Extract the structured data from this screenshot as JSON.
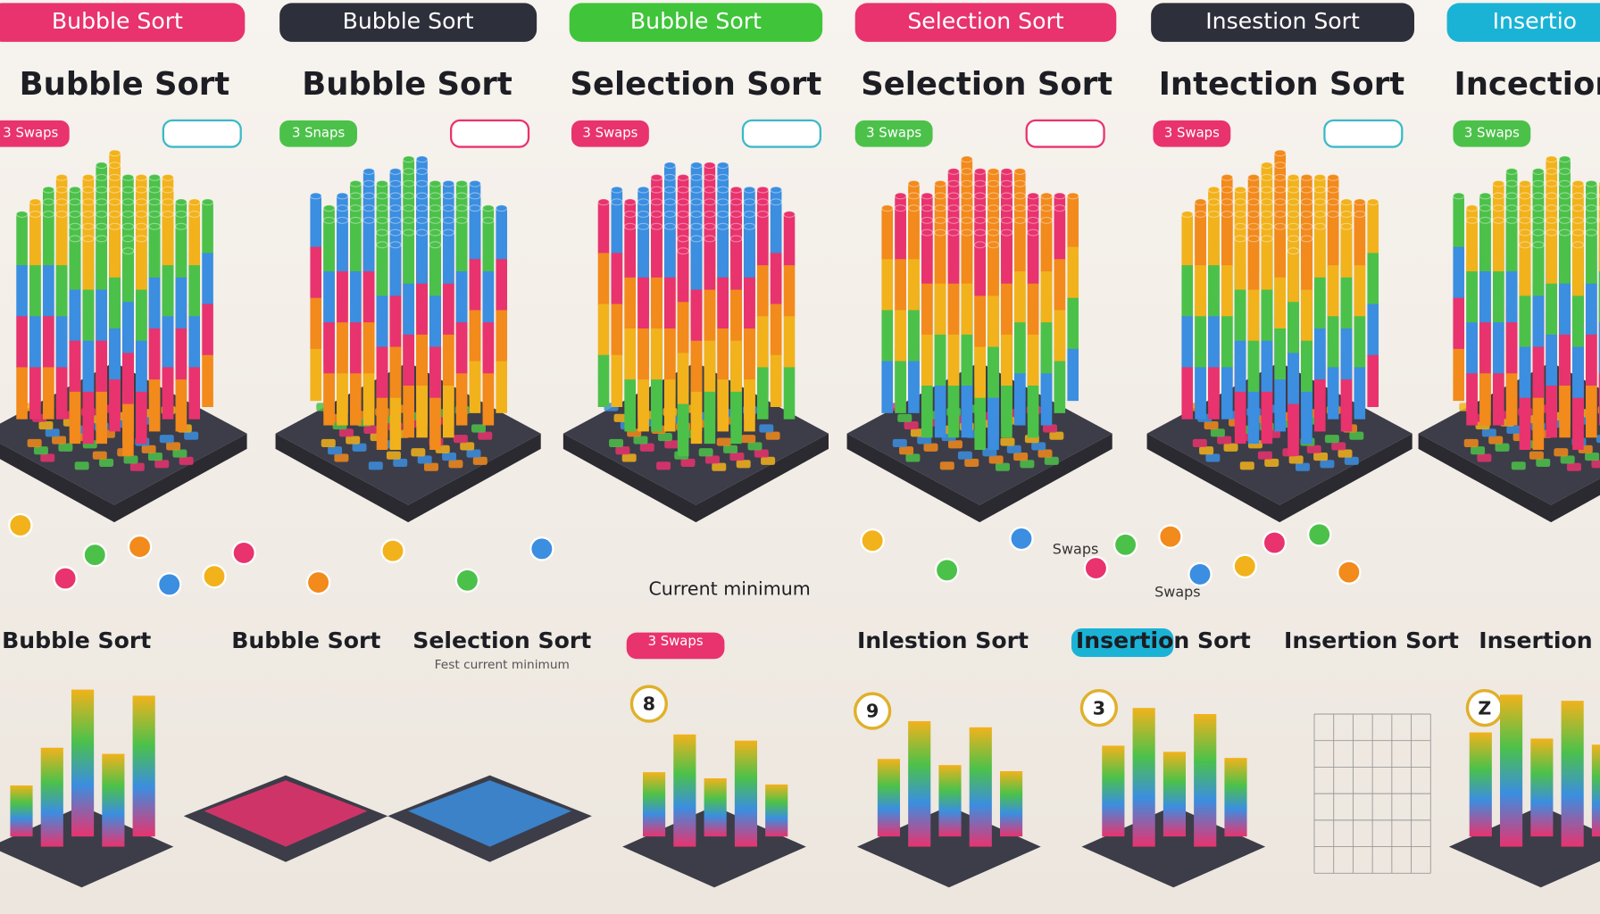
{
  "tabs": [
    "Bubble Sort",
    "Bubble Sort",
    "Bubble Sort",
    "Selection Sort",
    "Insestion Sort",
    "Insertio"
  ],
  "headings": [
    "Bubble Sort",
    "Bubble Sort",
    "Selection Sort",
    "Selection Sort",
    "Intection Sort",
    "Incection"
  ],
  "tags": [
    "3 Swaps",
    "3 Snaps",
    "3 Swaps",
    "3 Swaps",
    "3 Swaps",
    "3 Swaps"
  ],
  "annotations": {
    "current_minimum": "Current minimum",
    "swaps": "Swaps",
    "swaps_2": "Swaps"
  },
  "bottom": {
    "labels": [
      "Bubble Sort",
      "Bubble Sort",
      "Selection Sort",
      "3 Swaps",
      "Inlestion Sort",
      "Insertion Sort",
      "Insertion Sort",
      "Insertion"
    ],
    "subtitle": "Fest current minimum",
    "badges": [
      "8",
      "9",
      "3",
      "Z"
    ]
  }
}
